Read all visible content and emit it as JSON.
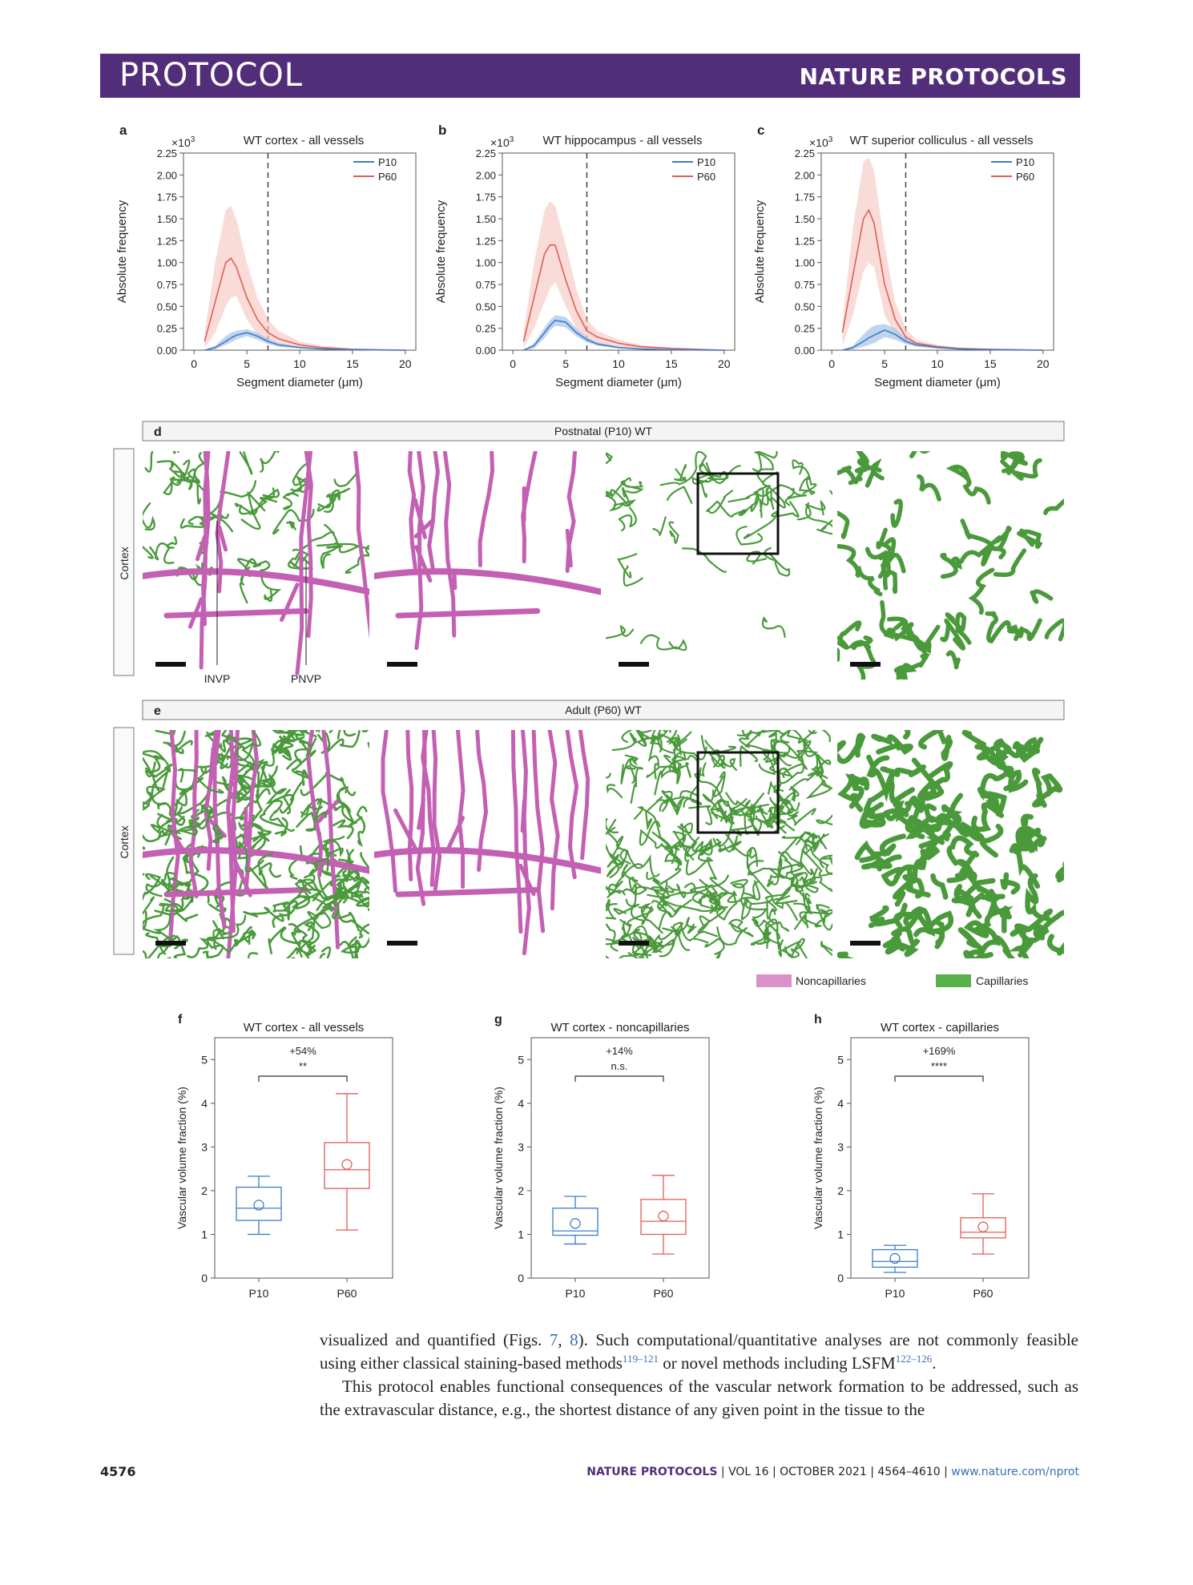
{
  "header": {
    "left": "PROTOCOL",
    "right": "NATURE PROTOCOLS"
  },
  "colors": {
    "p10": "#3c7dc8",
    "p60": "#e05e58",
    "p10_band": "#a9c6ea",
    "p60_band": "#f5c4bd",
    "noncap": "#c460b4",
    "cap": "#4a9a3c",
    "banner": "#522d7a"
  },
  "figure": {
    "line_panels": [
      {
        "letter": "a",
        "title": "WT cortex - all vessels",
        "exp": "×10",
        "exp_sup": "3",
        "ylabel": "Absolute frequency",
        "xlabel": "Segment diameter (μm)",
        "legend": [
          "P10",
          "P60"
        ]
      },
      {
        "letter": "b",
        "title": "WT hippocampus - all vessels",
        "exp": "×10",
        "exp_sup": "3",
        "ylabel": "Absolute frequency",
        "xlabel": "Segment diameter (μm)",
        "legend": [
          "P10",
          "P60"
        ]
      },
      {
        "letter": "c",
        "title": "WT superior colliculus - all vessels",
        "exp": "×10",
        "exp_sup": "3",
        "ylabel": "Absolute frequency",
        "xlabel": "Segment diameter (μm)",
        "legend": [
          "P10",
          "P60"
        ]
      }
    ],
    "image_rows": [
      {
        "letter": "d",
        "title": "Postnatal (P10) WT",
        "side_label": "Cortex",
        "annotations": [
          "INVP",
          "PNVP"
        ]
      },
      {
        "letter": "e",
        "title": "Adult (P60) WT",
        "side_label": "Cortex"
      }
    ],
    "legend": {
      "noncap": "Noncapillaries",
      "cap": "Capillaries"
    },
    "box_panels": [
      {
        "letter": "f",
        "title": "WT cortex - all vessels",
        "ylabel": "Vascular volume fraction (%)",
        "change": "+54%",
        "sig": "**",
        "categories": [
          "P10",
          "P60"
        ]
      },
      {
        "letter": "g",
        "title": "WT cortex - noncapillaries",
        "ylabel": "Vascular volume fraction (%)",
        "change": "+14%",
        "sig": "n.s.",
        "categories": [
          "P10",
          "P60"
        ]
      },
      {
        "letter": "h",
        "title": "WT cortex - capillaries",
        "ylabel": "Vascular volume fraction (%)",
        "change": "+169%",
        "sig": "****",
        "categories": [
          "P10",
          "P60"
        ]
      }
    ]
  },
  "chart_data": [
    {
      "type": "line",
      "title": "WT cortex - all vessels",
      "xlabel": "Segment diameter (μm)",
      "ylabel": "Absolute frequency",
      "y_scale": "×10^3",
      "xlim": [
        -1,
        21
      ],
      "ylim": [
        0,
        2.25
      ],
      "xticks": [
        0,
        5,
        10,
        15,
        20
      ],
      "yticks": [
        0,
        0.25,
        0.5,
        0.75,
        1.0,
        1.25,
        1.5,
        1.75,
        2.0,
        2.25
      ],
      "threshold_x": 7,
      "legend_position": "top-right",
      "x": [
        1,
        2,
        3,
        3.5,
        4,
        5,
        6,
        7,
        8,
        10,
        12,
        15,
        20
      ],
      "series": [
        {
          "name": "P10",
          "values": [
            0.0,
            0.03,
            0.1,
            0.14,
            0.17,
            0.2,
            0.16,
            0.1,
            0.06,
            0.03,
            0.015,
            0.005,
            0.0
          ],
          "upper": [
            0.0,
            0.05,
            0.16,
            0.2,
            0.22,
            0.24,
            0.2,
            0.13,
            0.08,
            0.04,
            0.02,
            0.008,
            0.0
          ],
          "lower": [
            0.0,
            0.01,
            0.06,
            0.09,
            0.12,
            0.16,
            0.12,
            0.07,
            0.04,
            0.02,
            0.01,
            0.003,
            0.0
          ]
        },
        {
          "name": "P60",
          "values": [
            0.1,
            0.55,
            1.0,
            1.05,
            0.95,
            0.6,
            0.35,
            0.2,
            0.13,
            0.06,
            0.03,
            0.01,
            0.0
          ],
          "upper": [
            0.2,
            1.0,
            1.6,
            1.65,
            1.5,
            1.0,
            0.6,
            0.35,
            0.22,
            0.1,
            0.05,
            0.02,
            0.0
          ],
          "lower": [
            0.02,
            0.2,
            0.5,
            0.6,
            0.62,
            0.35,
            0.18,
            0.1,
            0.07,
            0.03,
            0.015,
            0.005,
            0.0
          ]
        }
      ]
    },
    {
      "type": "line",
      "title": "WT hippocampus - all vessels",
      "xlabel": "Segment diameter (μm)",
      "ylabel": "Absolute frequency",
      "y_scale": "×10^3",
      "xlim": [
        -1,
        21
      ],
      "ylim": [
        0,
        2.25
      ],
      "xticks": [
        0,
        5,
        10,
        15,
        20
      ],
      "yticks": [
        0,
        0.25,
        0.5,
        0.75,
        1.0,
        1.25,
        1.5,
        1.75,
        2.0,
        2.25
      ],
      "threshold_x": 7,
      "legend_position": "top-right",
      "x": [
        1,
        2,
        3,
        3.5,
        4,
        5,
        6,
        7,
        8,
        10,
        12,
        15,
        20
      ],
      "series": [
        {
          "name": "P10",
          "values": [
            0.0,
            0.05,
            0.2,
            0.28,
            0.34,
            0.32,
            0.2,
            0.12,
            0.07,
            0.03,
            0.015,
            0.005,
            0.0
          ],
          "upper": [
            0.0,
            0.08,
            0.26,
            0.34,
            0.4,
            0.38,
            0.25,
            0.15,
            0.09,
            0.04,
            0.02,
            0.008,
            0.0
          ],
          "lower": [
            0.0,
            0.02,
            0.14,
            0.22,
            0.28,
            0.26,
            0.16,
            0.09,
            0.05,
            0.02,
            0.01,
            0.003,
            0.0
          ]
        },
        {
          "name": "P60",
          "values": [
            0.1,
            0.6,
            1.1,
            1.2,
            1.2,
            0.8,
            0.45,
            0.22,
            0.15,
            0.08,
            0.04,
            0.02,
            0.0
          ],
          "upper": [
            0.2,
            1.0,
            1.6,
            1.7,
            1.65,
            1.2,
            0.7,
            0.35,
            0.22,
            0.12,
            0.06,
            0.03,
            0.0
          ],
          "lower": [
            0.02,
            0.25,
            0.55,
            0.7,
            0.78,
            0.5,
            0.25,
            0.12,
            0.08,
            0.04,
            0.02,
            0.01,
            0.0
          ]
        }
      ]
    },
    {
      "type": "line",
      "title": "WT superior colliculus - all vessels",
      "xlabel": "Segment diameter (μm)",
      "ylabel": "Absolute frequency",
      "y_scale": "×10^3",
      "xlim": [
        -1,
        21
      ],
      "ylim": [
        0,
        2.25
      ],
      "xticks": [
        0,
        5,
        10,
        15,
        20
      ],
      "yticks": [
        0,
        0.25,
        0.5,
        0.75,
        1.0,
        1.25,
        1.5,
        1.75,
        2.0,
        2.25
      ],
      "threshold_x": 7,
      "legend_position": "top-right",
      "x": [
        1,
        2,
        3,
        3.5,
        4,
        5,
        6,
        7,
        8,
        10,
        12,
        15,
        20
      ],
      "series": [
        {
          "name": "P10",
          "values": [
            0.0,
            0.03,
            0.1,
            0.14,
            0.17,
            0.23,
            0.18,
            0.1,
            0.06,
            0.03,
            0.015,
            0.005,
            0.0
          ],
          "upper": [
            0.0,
            0.05,
            0.18,
            0.24,
            0.28,
            0.3,
            0.25,
            0.14,
            0.08,
            0.04,
            0.02,
            0.008,
            0.0
          ],
          "lower": [
            0.0,
            0.01,
            0.04,
            0.06,
            0.08,
            0.15,
            0.12,
            0.07,
            0.04,
            0.02,
            0.01,
            0.003,
            0.0
          ]
        },
        {
          "name": "P60",
          "values": [
            0.2,
            0.85,
            1.5,
            1.6,
            1.45,
            0.75,
            0.35,
            0.15,
            0.08,
            0.04,
            0.02,
            0.01,
            0.0
          ],
          "upper": [
            0.3,
            1.4,
            2.15,
            2.2,
            2.05,
            1.2,
            0.55,
            0.25,
            0.12,
            0.06,
            0.03,
            0.015,
            0.0
          ],
          "lower": [
            0.05,
            0.4,
            0.9,
            1.0,
            0.95,
            0.4,
            0.18,
            0.08,
            0.04,
            0.02,
            0.01,
            0.005,
            0.0
          ]
        }
      ]
    },
    {
      "type": "box",
      "title": "WT cortex - all vessels",
      "ylabel": "Vascular volume fraction (%)",
      "ylim": [
        0,
        5.5
      ],
      "yticks": [
        0,
        1,
        2,
        3,
        4,
        5
      ],
      "categories": [
        "P10",
        "P60"
      ],
      "boxes": [
        {
          "name": "P10",
          "min": 1.0,
          "q1": 1.32,
          "median": 1.6,
          "q3": 2.08,
          "max": 2.33,
          "mean": 1.67
        },
        {
          "name": "P60",
          "min": 1.1,
          "q1": 2.05,
          "median": 2.48,
          "q3": 3.1,
          "max": 4.22,
          "mean": 2.6
        }
      ],
      "annotation": {
        "change": "+54%",
        "significance": "**"
      }
    },
    {
      "type": "box",
      "title": "WT cortex - noncapillaries",
      "ylabel": "Vascular volume fraction (%)",
      "ylim": [
        0,
        5.5
      ],
      "yticks": [
        0,
        1,
        2,
        3,
        4,
        5
      ],
      "categories": [
        "P10",
        "P60"
      ],
      "boxes": [
        {
          "name": "P10",
          "min": 0.78,
          "q1": 0.98,
          "median": 1.08,
          "q3": 1.6,
          "max": 1.87,
          "mean": 1.25
        },
        {
          "name": "P60",
          "min": 0.55,
          "q1": 1.0,
          "median": 1.3,
          "q3": 1.8,
          "max": 2.35,
          "mean": 1.42
        }
      ],
      "annotation": {
        "change": "+14%",
        "significance": "n.s."
      }
    },
    {
      "type": "box",
      "title": "WT cortex - capillaries",
      "ylabel": "Vascular volume fraction (%)",
      "ylim": [
        0,
        5.5
      ],
      "yticks": [
        0,
        1,
        2,
        3,
        4,
        5
      ],
      "categories": [
        "P10",
        "P60"
      ],
      "boxes": [
        {
          "name": "P10",
          "min": 0.13,
          "q1": 0.25,
          "median": 0.38,
          "q3": 0.65,
          "max": 0.75,
          "mean": 0.45
        },
        {
          "name": "P60",
          "min": 0.55,
          "q1": 0.92,
          "median": 1.05,
          "q3": 1.38,
          "max": 1.93,
          "mean": 1.17
        }
      ],
      "annotation": {
        "change": "+169%",
        "significance": "****"
      }
    }
  ],
  "text": {
    "line1_a": "visualized and quantified (Figs. ",
    "line1_ref1": "7",
    "line1_b": ", ",
    "line1_ref2": "8",
    "line1_c": "). Such computational/quantitative analyses are not commonly feasible using either classical staining-based methods",
    "sup1": "119–121",
    "line1_d": " or novel methods including LSFM",
    "sup2": "122–126",
    "line1_e": ".",
    "para2": "This protocol enables functional consequences of the vascular network formation to be addressed, such as the extravascular distance, e.g., the shortest distance of any given point in the tissue to the"
  },
  "footer": {
    "page": "4576",
    "journal": "NATURE PROTOCOLS",
    "vol": "VOL 16",
    "date": "OCTOBER 2021",
    "pages": "4564–4610",
    "url": "www.nature.com/nprot"
  }
}
